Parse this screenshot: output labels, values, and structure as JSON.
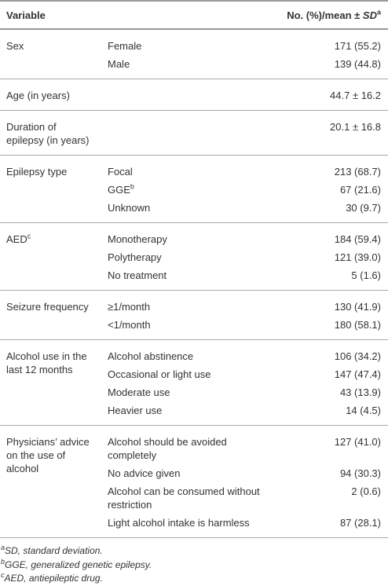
{
  "table": {
    "header": {
      "variable": "Variable",
      "value_prefix": "No. (%)/mean ± ",
      "value_sd": "SD",
      "value_sup": "a"
    },
    "groups": [
      {
        "label": "Sex",
        "rows": [
          {
            "label": "Female",
            "value": "171 (55.2)"
          },
          {
            "label": "Male",
            "value": "139 (44.8)"
          }
        ]
      },
      {
        "label": "Age (in years)",
        "rows": [
          {
            "value": "44.7 ± 16.2"
          }
        ]
      },
      {
        "label": "Duration of epilepsy (in years)",
        "rows": [
          {
            "value": "20.1 ± 16.8"
          }
        ]
      },
      {
        "label": "Epilepsy type",
        "rows": [
          {
            "label": "Focal",
            "value": "213 (68.7)"
          },
          {
            "label": "GGE",
            "sup": "b",
            "value": "67 (21.6)"
          },
          {
            "label": "Unknown",
            "value": "30 (9.7)"
          }
        ]
      },
      {
        "label": "AED",
        "sup": "c",
        "rows": [
          {
            "label": "Monotherapy",
            "value": "184 (59.4)"
          },
          {
            "label": "Polytherapy",
            "value": "121 (39.0)"
          },
          {
            "label": "No treatment",
            "value": "5 (1.6)"
          }
        ]
      },
      {
        "label": "Seizure frequency",
        "rows": [
          {
            "label": "≥1/month",
            "value": "130 (41.9)"
          },
          {
            "label": "<1/month",
            "value": "180 (58.1)"
          }
        ]
      },
      {
        "label": "Alcohol use in the last 12 months",
        "rows": [
          {
            "label": "Alcohol abstinence",
            "value": "106 (34.2)"
          },
          {
            "label": "Occasional or light use",
            "value": "147 (47.4)"
          },
          {
            "label": "Moderate use",
            "value": "43 (13.9)"
          },
          {
            "label": "Heavier use",
            "value": "14 (4.5)"
          }
        ]
      },
      {
        "label": "Physicians’ advice on the use of alcohol",
        "rows": [
          {
            "label": "Alcohol should be avoided completely",
            "value": "127 (41.0)"
          },
          {
            "label": "No advice given",
            "value": "94 (30.3)"
          },
          {
            "label": "Alcohol can be consumed without restriction",
            "value": "2 (0.6)"
          },
          {
            "label": "Light alcohol intake is harmless",
            "value": "87 (28.1)"
          }
        ]
      }
    ]
  },
  "footnotes": [
    {
      "mark": "a",
      "text": "SD, standard deviation."
    },
    {
      "mark": "b",
      "text": "GGE, generalized genetic epilepsy."
    },
    {
      "mark": "c",
      "text": "AED, antiepileptic drug."
    }
  ]
}
